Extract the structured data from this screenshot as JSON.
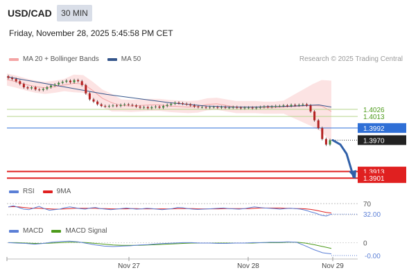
{
  "header": {
    "symbol": "USD/CAD",
    "timeframe": "30 MIN",
    "datetime": "Friday, November 28, 2025 5:45:58 PM CET",
    "credit": "Research © 2025 Trading Central"
  },
  "colors": {
    "bollinger": "#f4a4a4",
    "ma50": "#34558b",
    "support": "#e02020",
    "resistance": "#b5d48a",
    "pivot": "#2f6fd6",
    "price_label": "#222222",
    "rsi": "#5b7fd6",
    "rsi_ma": "#e02020",
    "macd": "#5b7fd6",
    "macd_signal": "#4c9a1a",
    "arrow": "#2f5fa8"
  },
  "chart_data": [
    {
      "type": "candlestick",
      "legend": [
        {
          "name": "MA 20 + Bollinger Bands",
          "color": "#f4a4a4"
        },
        {
          "name": "MA 50",
          "color": "#34558b"
        }
      ],
      "x_ticks": [
        "Nov 27",
        "Nov 28",
        "Nov 29"
      ],
      "ylim": [
        1.3895,
        1.4105
      ],
      "levels": [
        {
          "value": 1.4026,
          "label": "1.4026",
          "kind": "resistance"
        },
        {
          "value": 1.4013,
          "label": "1.4013",
          "kind": "resistance"
        },
        {
          "value": 1.3992,
          "label": "1.3992",
          "kind": "pivot"
        },
        {
          "value": 1.3913,
          "label": "1.3913",
          "kind": "support"
        },
        {
          "value": 1.3901,
          "label": "1.3901",
          "kind": "support"
        }
      ],
      "last_price": {
        "value": 1.397,
        "label": "1.3970"
      },
      "close_path": [
        1.4083,
        1.4081,
        1.4077,
        1.4072,
        1.4066,
        1.4064,
        1.4066,
        1.4062,
        1.4061,
        1.4063,
        1.4066,
        1.4069,
        1.4071,
        1.4074,
        1.4076,
        1.4078,
        1.4075,
        1.4079,
        1.4077,
        1.407,
        1.4055,
        1.4044,
        1.404,
        1.4035,
        1.4032,
        1.4031,
        1.4032,
        1.4033,
        1.4032,
        1.4034,
        1.4035,
        1.4034,
        1.4033,
        1.4031,
        1.4029,
        1.403,
        1.4028,
        1.403,
        1.4031,
        1.4029,
        1.4032,
        1.4034,
        1.4036,
        1.4038,
        1.4037,
        1.4036,
        1.4035,
        1.4033,
        1.4031,
        1.403,
        1.403,
        1.4029,
        1.403,
        1.403,
        1.4029,
        1.403,
        1.4029,
        1.4029,
        1.403,
        1.4029,
        1.4028,
        1.4029,
        1.4029,
        1.4028,
        1.4029,
        1.403,
        1.4031,
        1.403,
        1.4031,
        1.4032,
        1.4032,
        1.4033,
        1.4032,
        1.4034,
        1.4033,
        1.4034,
        1.4035,
        1.4033,
        1.4022,
        1.4006,
        1.3992,
        1.3972,
        1.3962,
        1.397
      ],
      "ma50": [
        1.4085,
        1.4081,
        1.4077,
        1.4073,
        1.4069,
        1.4065,
        1.4061,
        1.4057,
        1.4053,
        1.405,
        1.4047,
        1.4044,
        1.4041,
        1.4038,
        1.4036,
        1.4034,
        1.4032,
        1.4031,
        1.403,
        1.403,
        1.403,
        1.4031,
        1.4031,
        1.4032,
        1.4033,
        1.4034,
        1.403
      ],
      "bollinger_mid": [
        1.408,
        1.4076,
        1.4071,
        1.4067,
        1.4065,
        1.4067,
        1.407,
        1.4073,
        1.4072,
        1.406,
        1.4046,
        1.4038,
        1.4033,
        1.4032,
        1.4033,
        1.4034,
        1.4034,
        1.4032,
        1.4031,
        1.403,
        1.4031,
        1.4035,
        1.4036,
        1.4033,
        1.403,
        1.403,
        1.403,
        1.4029,
        1.4029,
        1.403,
        1.4031,
        1.4032,
        1.4033,
        1.4032,
        1.4022
      ],
      "future_arrow": [
        1.397,
        1.3962,
        1.3945,
        1.3903
      ]
    },
    {
      "type": "line",
      "title": "RSI",
      "legend": [
        {
          "name": "RSI",
          "color": "#5b7fd6"
        },
        {
          "name": "9MA",
          "color": "#e02020"
        }
      ],
      "levels": [
        {
          "value": 70,
          "label": "70"
        }
      ],
      "last_value": {
        "value": 32.0,
        "label": "32.00"
      },
      "ylim": [
        15,
        85
      ],
      "series": [
        {
          "name": "RSI",
          "values": [
            58,
            62,
            56,
            50,
            48,
            54,
            60,
            52,
            46,
            48,
            50,
            55,
            58,
            55,
            52,
            50,
            54,
            56,
            52,
            50,
            48,
            50,
            52,
            54,
            52,
            50,
            51,
            53,
            52,
            50,
            48,
            50,
            52,
            56,
            55,
            52,
            50,
            49,
            50,
            51,
            52,
            53,
            54,
            52,
            51,
            50,
            52,
            55,
            58,
            56,
            54,
            53,
            52,
            50,
            52,
            53,
            52,
            50,
            46,
            40,
            35,
            28,
            25,
            32
          ]
        },
        {
          "name": "9MA",
          "values": [
            58,
            59,
            58,
            56,
            54,
            53,
            53,
            52,
            51,
            50,
            50,
            51,
            52,
            53,
            53,
            53,
            53,
            53,
            52,
            52,
            51,
            51,
            51,
            51,
            52,
            52,
            51,
            51,
            51,
            51,
            51,
            51,
            51,
            52,
            52,
            52,
            52,
            51,
            51,
            51,
            51,
            51,
            52,
            52,
            52,
            52,
            52,
            52,
            53,
            54,
            54,
            54,
            54,
            54,
            53,
            53,
            52,
            52,
            51,
            49,
            46,
            42,
            38,
            36
          ]
        }
      ]
    },
    {
      "type": "line",
      "title": "MACD",
      "legend": [
        {
          "name": "MACD",
          "color": "#5b7fd6"
        },
        {
          "name": "MACD Signal",
          "color": "#4c9a1a"
        }
      ],
      "levels": [
        {
          "value": 0,
          "label": "0"
        }
      ],
      "last_value": {
        "value": -0.0,
        "label": "-0.00"
      },
      "ylim": [
        -0.0035,
        0.0015
      ],
      "series": [
        {
          "name": "MACD",
          "values": [
            0.0,
            -0.0001,
            -0.0002,
            -0.0004,
            -0.0002,
            0.0001,
            0.0003,
            0.0004,
            0.0002,
            -0.0002,
            -0.0006,
            -0.0009,
            -0.001,
            -0.0009,
            -0.0008,
            -0.0006,
            -0.0005,
            -0.0003,
            -0.0002,
            -0.0001,
            0.0,
            0.0,
            -0.0001,
            -0.0001,
            -0.0002,
            -0.0002,
            -0.0001,
            -0.0001,
            0.0,
            0.0,
            0.0001,
            0.0001,
            0.0002,
            0.0001,
            -0.0008,
            -0.0018,
            -0.0026,
            -0.0029
          ]
        },
        {
          "name": "MACD Signal",
          "values": [
            0.0,
            0.0,
            -0.0001,
            -0.0002,
            -0.0002,
            -0.0001,
            0.0,
            0.0001,
            0.0001,
            0.0,
            -0.0002,
            -0.0004,
            -0.0006,
            -0.0007,
            -0.0007,
            -0.0007,
            -0.0006,
            -0.0005,
            -0.0004,
            -0.0003,
            -0.0002,
            -0.0001,
            -0.0001,
            -0.0001,
            -0.0001,
            -0.0001,
            -0.0001,
            -0.0001,
            -0.0001,
            0.0,
            0.0,
            0.0,
            0.0001,
            0.0001,
            -0.0001,
            -0.0005,
            -0.001,
            -0.0015
          ]
        }
      ]
    }
  ]
}
